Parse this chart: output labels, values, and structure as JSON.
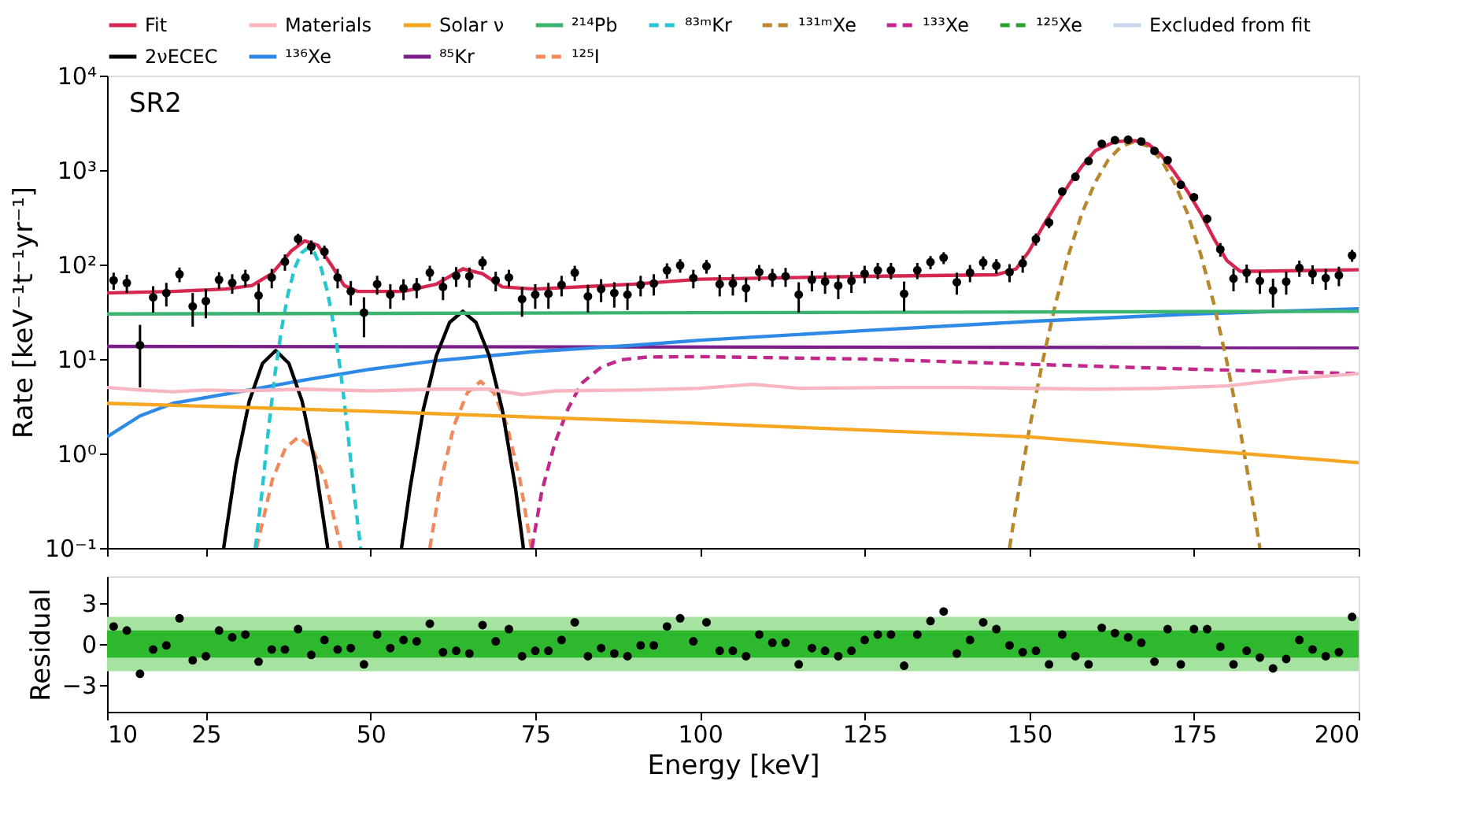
{
  "chart_data": [
    {
      "type": "line",
      "ylabel": "Rate [keV⁻¹t⁻¹yr⁻¹]",
      "annotations": [
        "SR2"
      ],
      "log": true,
      "legend": "top",
      "tick_labels": "y",
      "grid": false,
      "xlim": [
        10,
        200
      ],
      "xticks": [
        10,
        25,
        50,
        75,
        100,
        125,
        150,
        175,
        200
      ],
      "ylim": [
        0.1,
        10000
      ],
      "yticks": [
        {
          "value": 0.1,
          "label": "10⁻¹"
        },
        {
          "value": 1,
          "label": "10⁰"
        },
        {
          "value": 10,
          "label": "10¹"
        },
        {
          "value": 100,
          "label": "10²"
        },
        {
          "value": 1000,
          "label": "10³"
        },
        {
          "value": 10000,
          "label": "10⁴"
        }
      ],
      "series": [
        {
          "name": "Fit",
          "type": "line",
          "color": "#d62750",
          "line_style": "solid",
          "x": [
            10,
            20,
            28,
            32,
            35,
            38,
            40,
            42,
            44,
            46,
            48,
            55,
            60,
            64,
            67,
            70,
            75,
            90,
            100,
            125,
            145,
            148,
            150,
            152,
            154,
            156,
            158,
            160,
            163,
            166,
            168,
            170,
            172,
            174,
            176,
            178,
            180,
            182,
            185,
            200
          ],
          "values": [
            50,
            52,
            55,
            60,
            80,
            140,
            178,
            160,
            100,
            60,
            52,
            52,
            62,
            90,
            80,
            58,
            55,
            62,
            70,
            75,
            78,
            90,
            140,
            250,
            420,
            700,
            1100,
            1600,
            2000,
            2050,
            1900,
            1450,
            950,
            600,
            350,
            190,
            110,
            85,
            85,
            88
          ]
        },
        {
          "name": "Materials",
          "type": "line",
          "color": "#f7b6c2",
          "line_style": "solid",
          "x": [
            10,
            15,
            20,
            25,
            30,
            40,
            50,
            60,
            68,
            73,
            78,
            90,
            100,
            108,
            115,
            130,
            140,
            150,
            160,
            170,
            180,
            190,
            200
          ],
          "values": [
            5.0,
            4.7,
            4.5,
            4.7,
            4.6,
            4.8,
            4.6,
            4.8,
            4.8,
            4.2,
            4.6,
            4.7,
            4.9,
            5.4,
            4.9,
            5.0,
            5.0,
            4.9,
            4.8,
            4.9,
            5.2,
            6.2,
            7.0
          ]
        },
        {
          "name": "Solar ν",
          "type": "line",
          "color": "#f5a623",
          "line_style": "solid",
          "x": [
            10,
            50,
            92,
            150,
            200
          ],
          "values": [
            3.4,
            2.8,
            2.2,
            1.5,
            0.8
          ]
        },
        {
          "name": "²¹⁴Pb",
          "type": "line",
          "color": "#3cb371",
          "line_style": "solid",
          "x": [
            10,
            200
          ],
          "values": [
            30,
            32
          ]
        },
        {
          "name": "⁸³ᵐKr",
          "type": "line",
          "color": "#26c6d0",
          "line_style": "dashed",
          "x": [
            32.5,
            33.5,
            34.5,
            35.5,
            36.5,
            37.5,
            38.5,
            39.5,
            40.5,
            41.5,
            42.5,
            43.5,
            44.5,
            45.5,
            46.5,
            47.5,
            48.5
          ],
          "values": [
            0.1,
            0.38,
            1.8,
            7,
            21,
            50,
            92,
            133,
            150,
            133,
            92,
            50,
            21,
            7,
            1.8,
            0.38,
            0.1
          ]
        },
        {
          "name": "¹³¹ᵐXe",
          "type": "line",
          "color": "#b8862b",
          "line_style": "dashed",
          "x": [
            147,
            148,
            150,
            152,
            154,
            156,
            158,
            160,
            162,
            164,
            166,
            168,
            170,
            172,
            174,
            176,
            178,
            180,
            182,
            184,
            185
          ],
          "values": [
            0.1,
            0.28,
            1.8,
            9.3,
            39,
            130,
            350,
            740,
            1290,
            1790,
            2000,
            1790,
            1290,
            740,
            350,
            130,
            39,
            9.3,
            1.8,
            0.28,
            0.1
          ]
        },
        {
          "name": "¹³³Xe",
          "type": "line",
          "color": "#c2288a",
          "line_style": "dashed",
          "x": [
            74.5,
            76,
            78,
            80,
            82,
            85,
            88,
            92,
            100,
            125,
            150,
            175,
            200
          ],
          "values": [
            0.1,
            0.4,
            1.3,
            3,
            5.5,
            8.2,
            9.8,
            10.5,
            10.6,
            10,
            8.8,
            7.8,
            7.0
          ]
        },
        {
          "name": "¹²⁵Xe",
          "type": "line",
          "color": "#2ca02c",
          "line_style": "dashed"
        },
        {
          "name": "Excluded from fit",
          "type": "area",
          "color": "#c8d6ea"
        },
        {
          "name": "2νECEC",
          "type": "line",
          "color": "#000000",
          "line_style": "solid",
          "x": [
            27.7,
            29.6,
            31.6,
            33.6,
            35.6,
            37.6,
            39.6,
            41.6,
            43.5,
            49,
            54.7,
            56,
            58,
            60,
            62,
            64,
            66,
            68,
            70,
            72,
            73.2
          ],
          "values": [
            0.1,
            0.77,
            3.6,
            9.0,
            12.3,
            9.0,
            3.6,
            0.77,
            0.1,
            null,
            0.1,
            0.43,
            2.9,
            10.9,
            24.4,
            32,
            24.4,
            10.9,
            2.9,
            0.43,
            0.1
          ]
        },
        {
          "name": "¹³⁶Xe",
          "type": "line",
          "color": "#2e8ae6",
          "line_style": "solid",
          "x": [
            10,
            15,
            20,
            30,
            40,
            50,
            60,
            75,
            90,
            100,
            125,
            150,
            175,
            200
          ],
          "values": [
            1.5,
            2.5,
            3.4,
            4.5,
            6,
            7.8,
            9.6,
            12,
            14,
            15.8,
            20,
            25,
            30,
            34
          ]
        },
        {
          "name": "⁸⁵Kr",
          "type": "line",
          "color": "#7b1f8a",
          "line_style": "solid",
          "x": [
            10,
            200
          ],
          "values": [
            13.6,
            13.2
          ]
        },
        {
          "name": "¹²⁵I",
          "type": "line",
          "color": "#f08a5d",
          "line_style": "dashed",
          "x": [
            32.7,
            35.1,
            37.1,
            39.1,
            41.1,
            43.1,
            45.5,
            52,
            59,
            60.7,
            62.7,
            64.7,
            66.7,
            68.7,
            70.7,
            72.7,
            74.4
          ],
          "values": [
            0.1,
            0.53,
            1.15,
            1.5,
            1.15,
            0.53,
            0.1,
            null,
            0.1,
            0.52,
            2.0,
            4.4,
            5.8,
            4.4,
            2.0,
            0.52,
            0.1
          ]
        },
        {
          "type": "scatter",
          "color": "#000000",
          "marker": "circle",
          "x": [
            11,
            13,
            15,
            17,
            19,
            21,
            23,
            25,
            27,
            29,
            31,
            33,
            35,
            37,
            39,
            41,
            43,
            45,
            47,
            49,
            51,
            53,
            55,
            57,
            59,
            61,
            63,
            65,
            67,
            69,
            71,
            73,
            75,
            77,
            79,
            81,
            83,
            85,
            87,
            89,
            91,
            93,
            95,
            97,
            99,
            101,
            103,
            105,
            107,
            109,
            111,
            113,
            115,
            117,
            119,
            121,
            123,
            125,
            127,
            129,
            131,
            133,
            135,
            137,
            139,
            141,
            143,
            145,
            147,
            149,
            151,
            153,
            155,
            157,
            159,
            161,
            163,
            165,
            167,
            169,
            171,
            173,
            175,
            177,
            179,
            181,
            183,
            185,
            187,
            189,
            191,
            193,
            195,
            197,
            199
          ],
          "values": [
            68,
            64,
            14,
            45,
            50,
            79,
            36,
            41,
            69,
            64,
            73,
            47,
            73,
            107,
            187,
            154,
            137,
            73,
            52,
            31,
            62,
            48,
            56,
            58,
            82,
            58,
            76,
            75,
            105,
            68,
            73,
            43,
            48,
            49,
            61,
            82,
            46,
            55,
            50,
            48,
            61,
            63,
            87,
            98,
            72,
            96,
            62,
            63,
            56,
            83,
            74,
            75,
            48,
            69,
            66,
            60,
            67,
            80,
            87,
            87,
            49,
            87,
            106,
            118,
            65,
            82,
            105,
            97,
            83,
            103,
            186,
            278,
            592,
            848,
            1244,
            1898,
            2070,
            2094,
            2009,
            1596,
            1274,
            699,
            516,
            305,
            145,
            71,
            82,
            67,
            53,
            66,
            92,
            80,
            72,
            77,
            125
          ],
          "errors": [
            14,
            14,
            9,
            14,
            14,
            14,
            14,
            14,
            14,
            15,
            15,
            16,
            17,
            21,
            25,
            26,
            22,
            17,
            15,
            14,
            14,
            14,
            14,
            14,
            15,
            16,
            18,
            18,
            17,
            16,
            15,
            15,
            14,
            15,
            15,
            15,
            15,
            15,
            15,
            15,
            15,
            16,
            16,
            16,
            16,
            16,
            16,
            16,
            16,
            16,
            16,
            17,
            17,
            17,
            17,
            17,
            17,
            17,
            17,
            17,
            17,
            17,
            17,
            17,
            17,
            17,
            17,
            17,
            18,
            21,
            27,
            35,
            46,
            58,
            71,
            82,
            87,
            88,
            87,
            80,
            67,
            54,
            42,
            32,
            24,
            19,
            18,
            18,
            18,
            18,
            18,
            18,
            18,
            18,
            18
          ]
        }
      ]
    },
    {
      "type": "scatter",
      "xlabel": "Energy [keV]",
      "ylabel": "Residual",
      "grid": false,
      "marker": "circle",
      "xlim": [
        10,
        200
      ],
      "xticks": [
        10,
        25,
        50,
        75,
        100,
        125,
        150,
        175,
        200
      ],
      "ylim": [
        -5,
        5
      ],
      "yticks": [
        {
          "value": -3,
          "label": "−3"
        },
        0,
        3
      ],
      "bands": [
        {
          "axis": "y",
          "from": -2,
          "to": 2,
          "color": "#a6e3a0"
        },
        {
          "axis": "y",
          "from": -1,
          "to": 1,
          "color": "#2eb82e"
        }
      ],
      "x": [
        11,
        13,
        15,
        17,
        19,
        21,
        23,
        25,
        27,
        29,
        31,
        33,
        35,
        37,
        39,
        41,
        43,
        45,
        47,
        49,
        51,
        53,
        55,
        57,
        59,
        61,
        63,
        65,
        67,
        69,
        71,
        73,
        75,
        77,
        79,
        81,
        83,
        85,
        87,
        89,
        91,
        93,
        95,
        97,
        99,
        101,
        103,
        105,
        107,
        109,
        111,
        113,
        115,
        117,
        119,
        121,
        123,
        125,
        127,
        129,
        131,
        133,
        135,
        137,
        139,
        141,
        143,
        145,
        147,
        149,
        151,
        153,
        155,
        157,
        159,
        161,
        163,
        165,
        167,
        169,
        171,
        173,
        175,
        177,
        179,
        181,
        183,
        185,
        187,
        189,
        191,
        193,
        195,
        197,
        199
      ],
      "series": [
        {
          "color": "#000000",
          "values": [
            1.3,
            1.0,
            -2.2,
            -0.4,
            -0.1,
            1.9,
            -1.2,
            -0.9,
            1.0,
            0.5,
            0.7,
            -1.3,
            -0.4,
            -0.4,
            1.1,
            -0.8,
            0.3,
            -0.4,
            -0.3,
            -1.5,
            0.7,
            -0.3,
            0.3,
            0.2,
            1.5,
            -0.6,
            -0.5,
            -0.7,
            1.4,
            0.2,
            1.1,
            -0.9,
            -0.5,
            -0.5,
            0.3,
            1.6,
            -0.9,
            -0.3,
            -0.7,
            -0.9,
            -0.1,
            -0.1,
            1.3,
            1.9,
            0.2,
            1.6,
            -0.5,
            -0.5,
            -0.9,
            0.7,
            0.1,
            0.1,
            -1.5,
            -0.3,
            -0.5,
            -0.9,
            -0.5,
            0.3,
            0.7,
            0.7,
            -1.6,
            0.7,
            1.7,
            2.4,
            -0.7,
            0.3,
            1.6,
            1.1,
            -0.1,
            -0.6,
            -0.5,
            -1.5,
            0.7,
            -0.9,
            -1.5,
            1.2,
            0.8,
            0.5,
            0.1,
            -1.3,
            1.1,
            -1.5,
            1.1,
            1.1,
            -0.2,
            -1.5,
            -0.5,
            -1.0,
            -1.8,
            -1.1,
            0.3,
            -0.4,
            -0.9,
            -0.6,
            2.0
          ]
        }
      ]
    }
  ]
}
